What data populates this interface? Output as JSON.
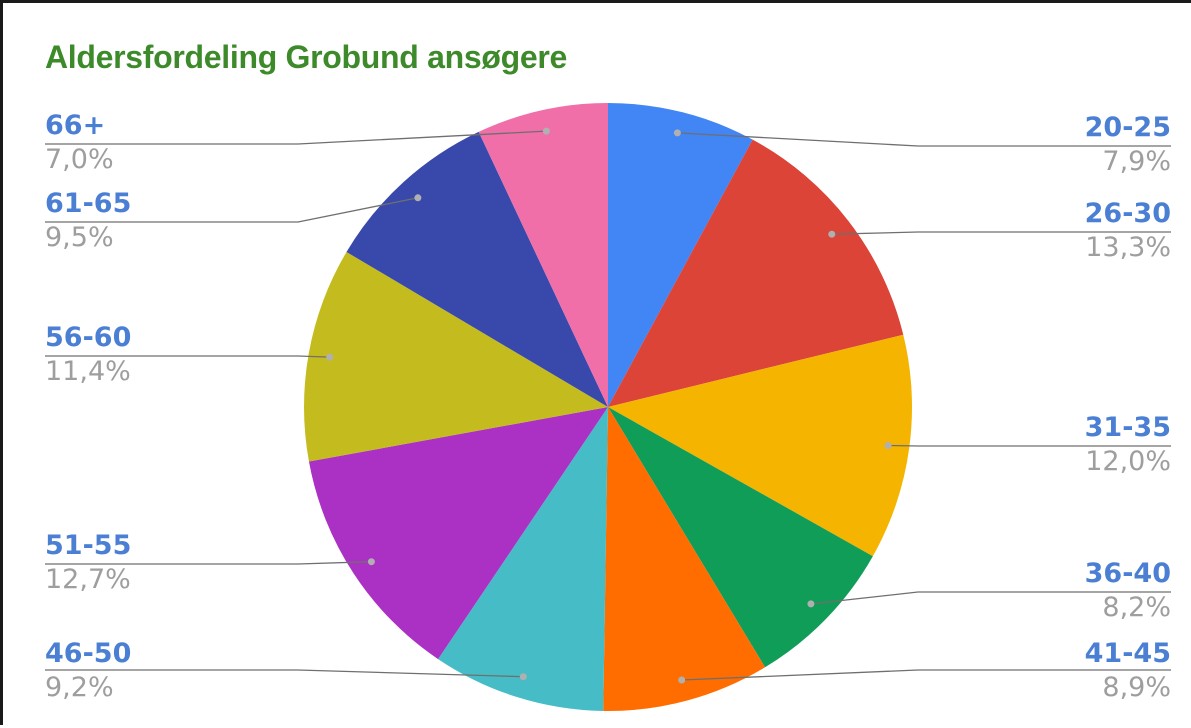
{
  "chart_data": {
    "type": "pie",
    "title": "Aldersfordeling Grobund ansøgere",
    "slices": [
      {
        "label": "20-25",
        "value": 7.9,
        "value_label": "7,9%",
        "color": "#4285f4"
      },
      {
        "label": "26-30",
        "value": 13.3,
        "value_label": "13,3%",
        "color": "#db4437"
      },
      {
        "label": "31-35",
        "value": 12.0,
        "value_label": "12,0%",
        "color": "#f4b400"
      },
      {
        "label": "36-40",
        "value": 8.2,
        "value_label": "8,2%",
        "color": "#0f9d58"
      },
      {
        "label": "41-45",
        "value": 8.9,
        "value_label": "8,9%",
        "color": "#ff6d00"
      },
      {
        "label": "46-50",
        "value": 9.2,
        "value_label": "9,2%",
        "color": "#46bdc6"
      },
      {
        "label": "51-55",
        "value": 12.7,
        "value_label": "12,7%",
        "color": "#ab30c4"
      },
      {
        "label": "56-60",
        "value": 11.4,
        "value_label": "11,4%",
        "color": "#c4bc1e"
      },
      {
        "label": "61-65",
        "value": 9.5,
        "value_label": "9,5%",
        "color": "#3949ab"
      },
      {
        "label": "66+",
        "value": 7.0,
        "value_label": "7,0%",
        "color": "#f06fa8"
      }
    ],
    "start_angle": "12 o'clock",
    "direction": "clockwise",
    "legend": "none",
    "label_style": "leader-lines"
  },
  "colors": {
    "title": "#3d8a2a",
    "category_label": "#4a7fd4",
    "percent_label": "#9e9e9e",
    "leader_line": "#6f6f6f"
  }
}
